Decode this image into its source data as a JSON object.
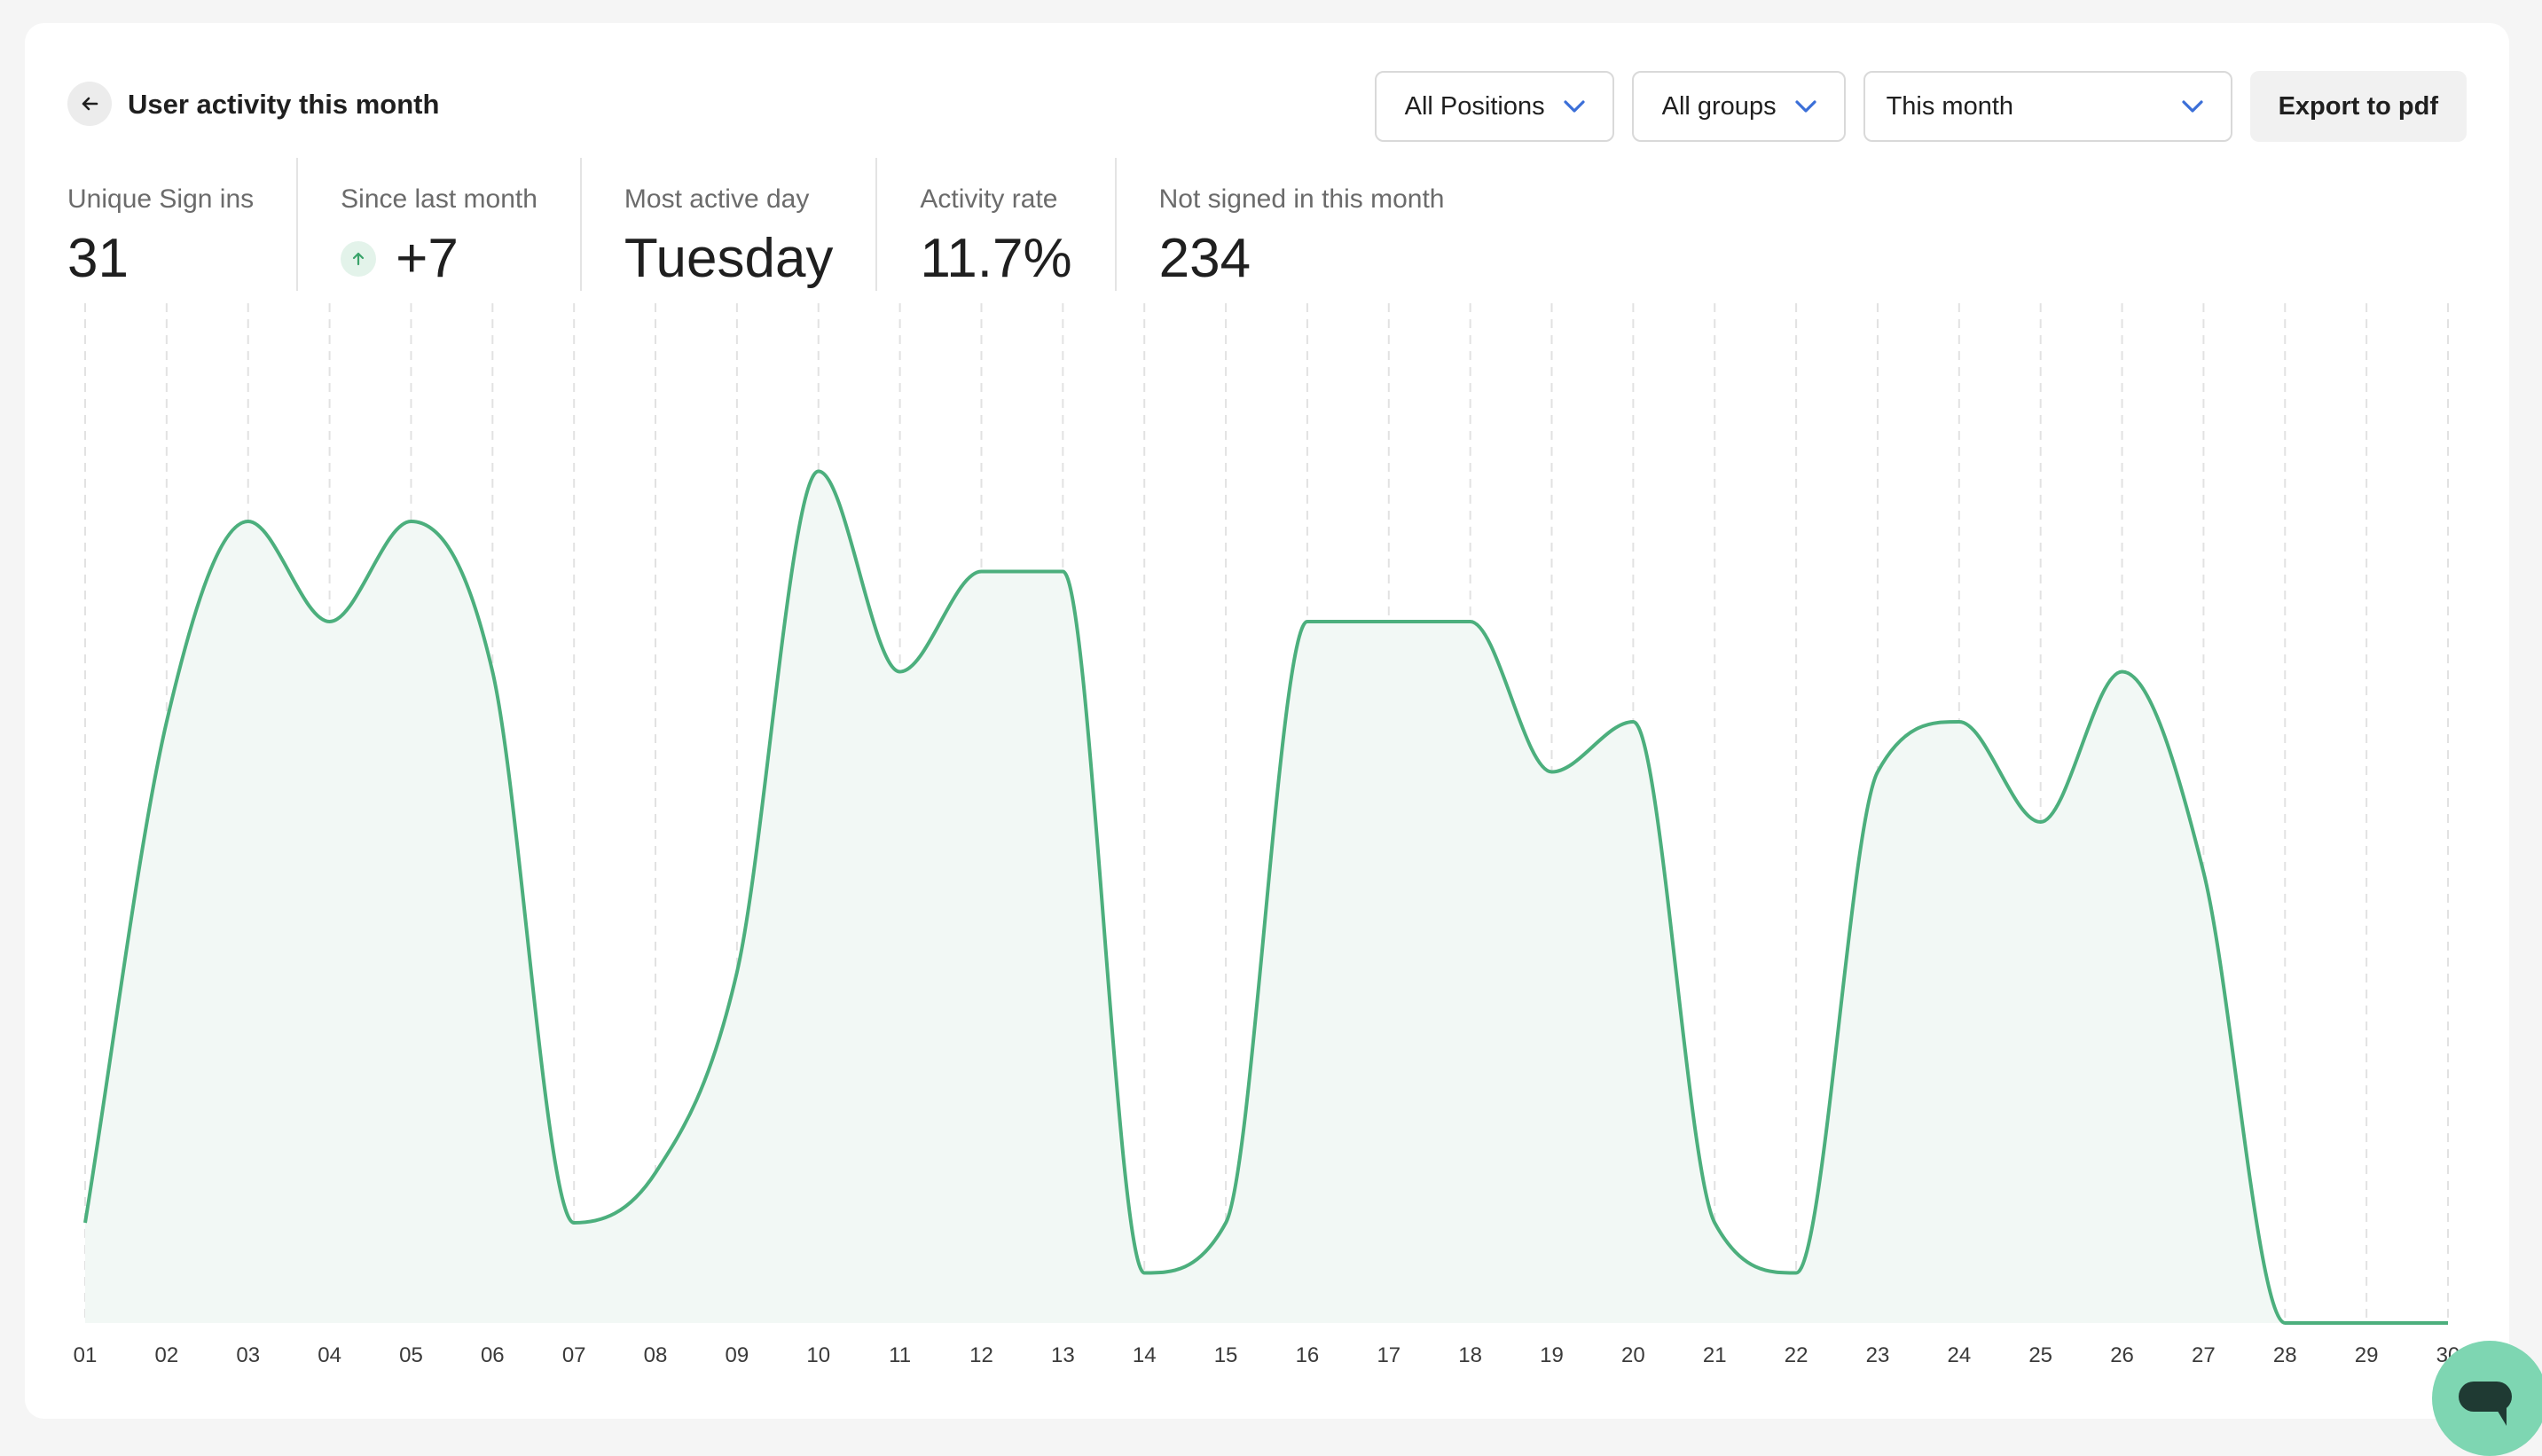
{
  "header": {
    "title": "User activity this month",
    "back_icon": "arrow-left-icon"
  },
  "filters": {
    "positions": "All Positions",
    "groups": "All groups",
    "period": "This month",
    "export_label": "Export to pdf",
    "chevron_color": "#3b6fd8"
  },
  "stats": [
    {
      "label": "Unique Sign ins",
      "value": "31"
    },
    {
      "label": "Since last month",
      "value": "+7",
      "trend_icon": "arrow-up-icon"
    },
    {
      "label": "Most active day",
      "value": "Tuesday"
    },
    {
      "label": "Activity rate",
      "value": "11.7%"
    },
    {
      "label": "Not signed in this month",
      "value": "234"
    }
  ],
  "chart_data": {
    "type": "area",
    "x": [
      "01",
      "02",
      "03",
      "04",
      "05",
      "06",
      "07",
      "08",
      "09",
      "10",
      "11",
      "12",
      "13",
      "14",
      "15",
      "16",
      "17",
      "18",
      "19",
      "20",
      "21",
      "22",
      "23",
      "24",
      "25",
      "26",
      "27",
      "28",
      "29",
      "30"
    ],
    "values": [
      2,
      12,
      16,
      14,
      16,
      13,
      2,
      3,
      7,
      17,
      13,
      15,
      15,
      1,
      2,
      14,
      14,
      14,
      11,
      12,
      2,
      1,
      11,
      12,
      10,
      13,
      9,
      0,
      0,
      0
    ],
    "ylim": [
      0,
      20
    ],
    "grid": "vertical dashed",
    "line_color": "#4caf7d",
    "fill_color": "#f2f8f5"
  },
  "chat": {
    "icon": "chat-bubble-icon",
    "color": "#7ed6b2"
  }
}
